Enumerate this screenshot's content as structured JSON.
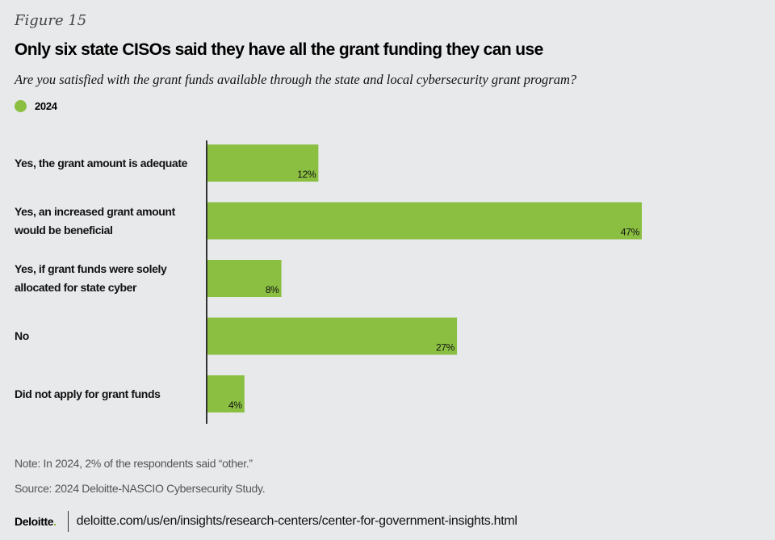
{
  "figure_label": "Figure 15",
  "title": "Only six state CISOs said they have all the grant funding they can use",
  "subtitle": "Are you satisfied with the grant funds available through the state and local cybersecurity grant program?",
  "colors": {
    "bar": "#8abf42",
    "axis": "#333333",
    "background": "#e8e9eb"
  },
  "chart_data": {
    "type": "bar",
    "orientation": "horizontal",
    "title": "Only six state CISOs said they have all the grant funding they can use",
    "subtitle": "Are you satisfied with the grant funds available through the state and local cybersecurity grant program?",
    "legend": [
      {
        "name": "2024",
        "color": "#8abf42"
      }
    ],
    "legend_position": "top-left",
    "categories": [
      "Yes, the grant amount is adequate",
      "Yes, an increased grant amount would be beneficial",
      "Yes, if grant funds were solely allocated for state cyber",
      "No",
      "Did not apply for grant funds"
    ],
    "category_lines": [
      [
        "Yes, the grant amount is adequate"
      ],
      [
        "Yes, an increased grant amount",
        "would be beneficial"
      ],
      [
        "Yes, if grant funds were solely",
        "allocated for state cyber"
      ],
      [
        "No"
      ],
      [
        "Did not apply for grant funds"
      ]
    ],
    "series": [
      {
        "name": "2024",
        "values": [
          12,
          47,
          8,
          27,
          4
        ]
      }
    ],
    "value_labels": [
      "12%",
      "47%",
      "8%",
      "27%",
      "4%"
    ],
    "unit": "%",
    "xlim": [
      0,
      47
    ],
    "grid": false,
    "xlabel": "",
    "ylabel": ""
  },
  "note": "Note: In 2024, 2% of the respondents said “other.”",
  "source": "Source: 2024 Deloitte-NASCIO Cybersecurity Study.",
  "footer": {
    "logo": "Deloitte",
    "logo_period": ".",
    "url": "deloitte.com/us/en/insights/research-centers/center-for-government-insights.html"
  }
}
